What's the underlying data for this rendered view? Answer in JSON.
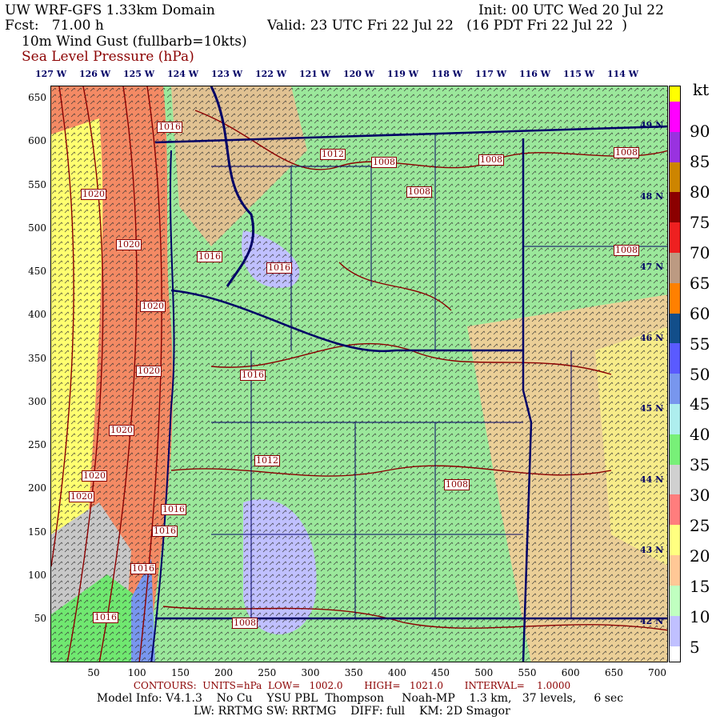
{
  "header": {
    "title": "UW WRF-GFS 1.33km Domain",
    "init": "Init: 00 UTC Wed 20 Jul 22",
    "fcst": "Fcst:   71.00 h",
    "valid": "Valid: 23 UTC Fri 22 Jul 22   (16 PDT Fri 22 Jul 22  )",
    "field1": "10m Wind Gust (fullbarb=10kts)",
    "field2": "Sea Level Pressure (hPa)"
  },
  "longitude_labels": [
    "127 W",
    "126 W",
    "125 W",
    "124 W",
    "123 W",
    "122 W",
    "121 W",
    "120 W",
    "119 W",
    "118 W",
    "117 W",
    "116 W",
    "115 W",
    "114 W"
  ],
  "latitude_labels": [
    "49 N",
    "48 N",
    "47 N",
    "46 N",
    "45 N",
    "44 N",
    "43 N",
    "42 N"
  ],
  "y_ticks": [
    "650",
    "600",
    "550",
    "500",
    "450",
    "400",
    "350",
    "300",
    "250",
    "200",
    "150",
    "100",
    "50"
  ],
  "x_ticks": [
    "50",
    "100",
    "150",
    "200",
    "250",
    "300",
    "350",
    "400",
    "450",
    "500",
    "550",
    "600",
    "650",
    "700"
  ],
  "colorbar": {
    "unit": "kt",
    "labels": [
      "90",
      "85",
      "80",
      "75",
      "70",
      "65",
      "60",
      "55",
      "50",
      "45",
      "40",
      "35",
      "30",
      "25",
      "20",
      "15",
      "10",
      "5"
    ],
    "colors_top_to_bottom": [
      "#ffff00",
      "#ff00ff",
      "#ff00ff",
      "#9932e0",
      "#9932e0",
      "#cd8500",
      "#cd8500",
      "#8b0000",
      "#8b0000",
      "#ee2020",
      "#ee2020",
      "#bc9a82",
      "#bc9a82",
      "#ff8000",
      "#ff8000",
      "#124e8a",
      "#124e8a",
      "#5a5aff",
      "#5a5aff",
      "#7896ee",
      "#7896ee",
      "#aeeeee",
      "#aeeeee",
      "#78f078",
      "#78f078",
      "#d0d0d0",
      "#d0d0d0",
      "#ff7d7d",
      "#ff7d7d",
      "#ffff80",
      "#ffff80",
      "#ffc896",
      "#ffc896",
      "#c0ffc0",
      "#c0ffc0",
      "#c0c0ff",
      "#c0c0ff",
      "#ffffff"
    ]
  },
  "pressure_labels": [
    "1016",
    "1012",
    "1008",
    "1008",
    "1008",
    "1020",
    "1008",
    "1020",
    "1016",
    "1016",
    "1008",
    "1020",
    "1020",
    "1016",
    "1020",
    "1012",
    "1020",
    "1020",
    "1008",
    "1016",
    "1016",
    "1016",
    "1016",
    "1008"
  ],
  "footer": {
    "contours": "CONTOURS:  UNITS=hPa  LOW=   1002.0       HIGH=   1021.0       INTERVAL=    1.0000",
    "model_info": "Model Info: V4.1.3    No Cu    YSU PBL  Thompson     Noah-MP    1.3 km,   37 levels,     6 sec",
    "physics": "LW: RRTMG SW: RRTMG    DIFF: full    KM: 2D Smagor"
  },
  "colors": {
    "contour": "#8b0000",
    "borders": "#000066",
    "ocean_fill": "#f48a64",
    "land_fill": "#9be89b"
  }
}
